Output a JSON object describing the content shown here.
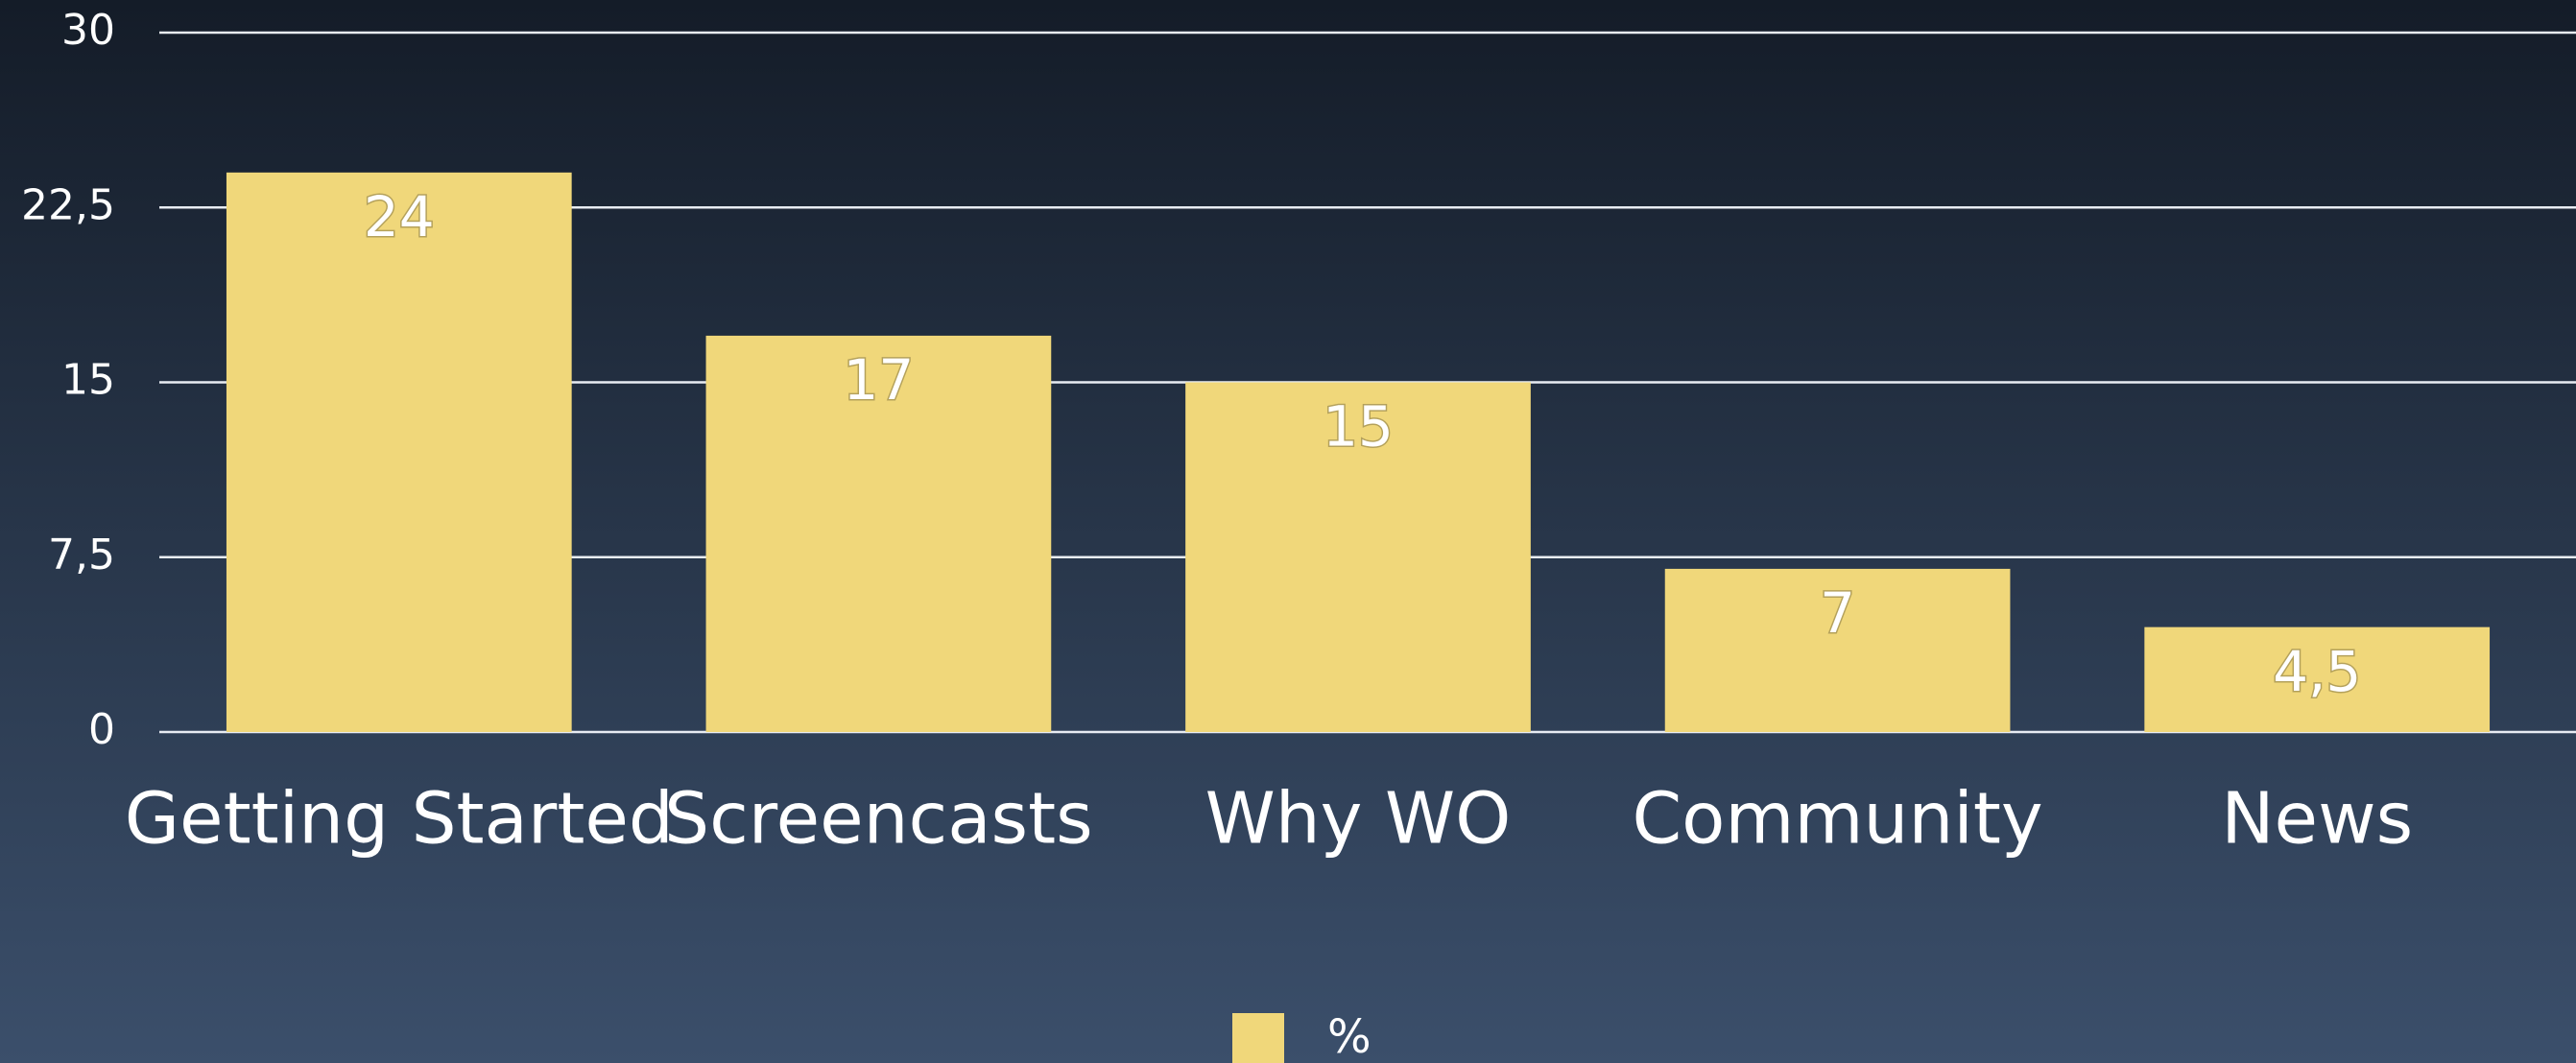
{
  "chart_data": {
    "type": "bar",
    "categories": [
      "Getting Started",
      "Screencasts",
      "Why WO",
      "Community",
      "News"
    ],
    "series": [
      {
        "name": "%",
        "color": "#f0d77a",
        "values": [
          24,
          17,
          15,
          7,
          4.5
        ],
        "value_labels": [
          "24",
          "17",
          "15",
          "7",
          "4,5"
        ]
      }
    ],
    "ylim": [
      0,
      30
    ],
    "yticks": [
      0,
      {
        "value": 7.5,
        "label": "7,5"
      },
      15,
      {
        "value": 22.5,
        "label": "22,5"
      },
      30
    ],
    "grid": true,
    "legend": "bottom"
  }
}
